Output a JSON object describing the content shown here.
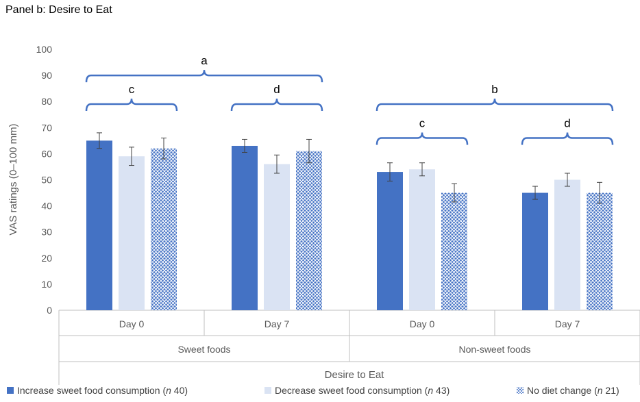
{
  "panel_title": "Panel b: Desire to Eat",
  "colors": {
    "increase": "#4472c4",
    "decrease": "#dae3f3",
    "nochange": "#4472c4",
    "bracket": "#4472c4",
    "axis": "#bfbfbf",
    "errorbar": "#404040"
  },
  "legend": [
    {
      "prefix": "Increase sweet food consumption (",
      "n_label": "n",
      "suffix": " 40)",
      "swatch": "increase"
    },
    {
      "prefix": "Decrease sweet food consumption (",
      "n_label": "n",
      "suffix": " 43)",
      "swatch": "decrease"
    },
    {
      "prefix": "No diet change (",
      "n_label": "n",
      "suffix": " 21)",
      "swatch": "nochange"
    }
  ],
  "chart_data": {
    "type": "bar",
    "title": "",
    "ylabel": "VAS ratings (0–100 mm)",
    "xlabel": "Desire to Eat",
    "ylim": [
      0,
      100
    ],
    "yticks": [
      0,
      10,
      20,
      30,
      40,
      50,
      60,
      70,
      80,
      90,
      100
    ],
    "groups": [
      "Sweet foods",
      "Non-sweet foods"
    ],
    "categories": [
      "Day 0",
      "Day 7",
      "Day 0",
      "Day 7"
    ],
    "category_group": [
      0,
      0,
      1,
      1
    ],
    "series": [
      {
        "name": "Increase sweet food consumption (n 40)",
        "values": [
          65,
          63,
          53,
          45
        ],
        "errors": [
          3,
          2.5,
          3.5,
          2.5
        ]
      },
      {
        "name": "Decrease sweet food consumption (n 43)",
        "values": [
          59,
          56,
          54,
          50
        ],
        "errors": [
          3.5,
          3.5,
          2.5,
          2.5
        ]
      },
      {
        "name": "No diet change (n 21)",
        "values": [
          62,
          61,
          45,
          45
        ],
        "errors": [
          4,
          4.5,
          3.5,
          4
        ]
      }
    ],
    "brackets": [
      {
        "label": "a",
        "from_category": 0,
        "to_category": 1,
        "level": 90
      },
      {
        "label": "c",
        "from_category": 0,
        "to_category": 0,
        "level": 79
      },
      {
        "label": "d",
        "from_category": 1,
        "to_category": 1,
        "level": 79
      },
      {
        "label": "b",
        "from_category": 2,
        "to_category": 3,
        "level": 79
      },
      {
        "label": "c",
        "from_category": 2,
        "to_category": 2,
        "level": 66
      },
      {
        "label": "d",
        "from_category": 3,
        "to_category": 3,
        "level": 66
      }
    ],
    "grid": false,
    "legend_position": "bottom"
  }
}
